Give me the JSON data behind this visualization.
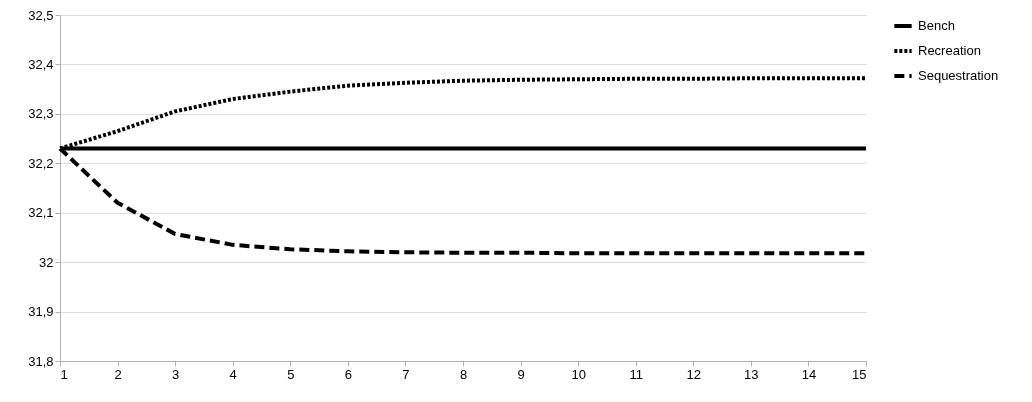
{
  "chart_data": {
    "type": "line",
    "x": [
      1,
      2,
      3,
      4,
      5,
      6,
      7,
      8,
      9,
      10,
      11,
      12,
      13,
      14,
      15
    ],
    "series": [
      {
        "name": "Bench",
        "color": "#000000",
        "line_style": "solid",
        "values": [
          32.23,
          32.23,
          32.23,
          32.23,
          32.23,
          32.23,
          32.23,
          32.23,
          32.23,
          32.23,
          32.23,
          32.23,
          32.23,
          32.23,
          32.23
        ]
      },
      {
        "name": "Recreation",
        "color": "#000000",
        "line_style": "dotted",
        "values": [
          32.23,
          32.265,
          32.305,
          32.33,
          32.345,
          32.357,
          32.363,
          32.367,
          32.369,
          32.37,
          32.371,
          32.371,
          32.372,
          32.372,
          32.372
        ]
      },
      {
        "name": "Sequestration",
        "color": "#000000",
        "line_style": "dashed",
        "values": [
          32.23,
          32.12,
          32.057,
          32.035,
          32.026,
          32.022,
          32.02,
          32.019,
          32.019,
          32.018,
          32.018,
          32.018,
          32.018,
          32.018,
          32.018
        ]
      }
    ],
    "xlim": [
      1,
      15
    ],
    "xticks": [
      1,
      2,
      3,
      4,
      5,
      6,
      7,
      8,
      9,
      10,
      11,
      12,
      13,
      14,
      15
    ],
    "ylim": [
      31.8,
      32.5
    ],
    "yticks": [
      {
        "value": 31.8,
        "label": "31,8"
      },
      {
        "value": 31.9,
        "label": "31,9"
      },
      {
        "value": 32,
        "label": "32"
      },
      {
        "value": 32.1,
        "label": "32,1"
      },
      {
        "value": 32.2,
        "label": "32,2"
      },
      {
        "value": 32.3,
        "label": "32,3"
      },
      {
        "value": 32.4,
        "label": "32,4"
      },
      {
        "value": 32.5,
        "label": "32,5"
      }
    ],
    "grid": "y",
    "legend": "right",
    "marker": "none"
  }
}
